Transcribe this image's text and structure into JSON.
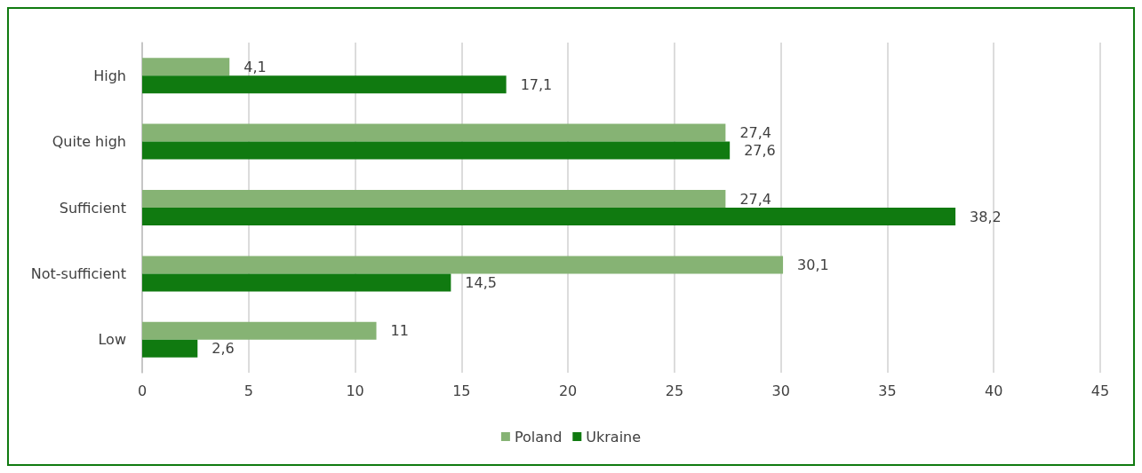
{
  "chart_data": {
    "type": "bar",
    "orientation": "horizontal",
    "categories": [
      "High",
      "Quite high",
      "Sufficient",
      "Not-sufficient",
      "Low"
    ],
    "series": [
      {
        "name": "Poland",
        "color": "#86b374",
        "values": [
          4.1,
          27.4,
          27.4,
          30.1,
          11
        ],
        "value_labels": [
          "4,1",
          "27,4",
          "27,4",
          "30,1",
          "11"
        ]
      },
      {
        "name": "Ukraine",
        "color": "#107a10",
        "values": [
          17.1,
          27.6,
          38.2,
          14.5,
          2.6
        ],
        "value_labels": [
          "17,1",
          "27,6",
          "38,2",
          "14,5",
          "2,6"
        ]
      }
    ],
    "xlim": [
      0,
      45
    ],
    "xticks": [
      0,
      5,
      10,
      15,
      20,
      25,
      30,
      35,
      40,
      45
    ],
    "grid": "x",
    "legend": "bottom"
  }
}
